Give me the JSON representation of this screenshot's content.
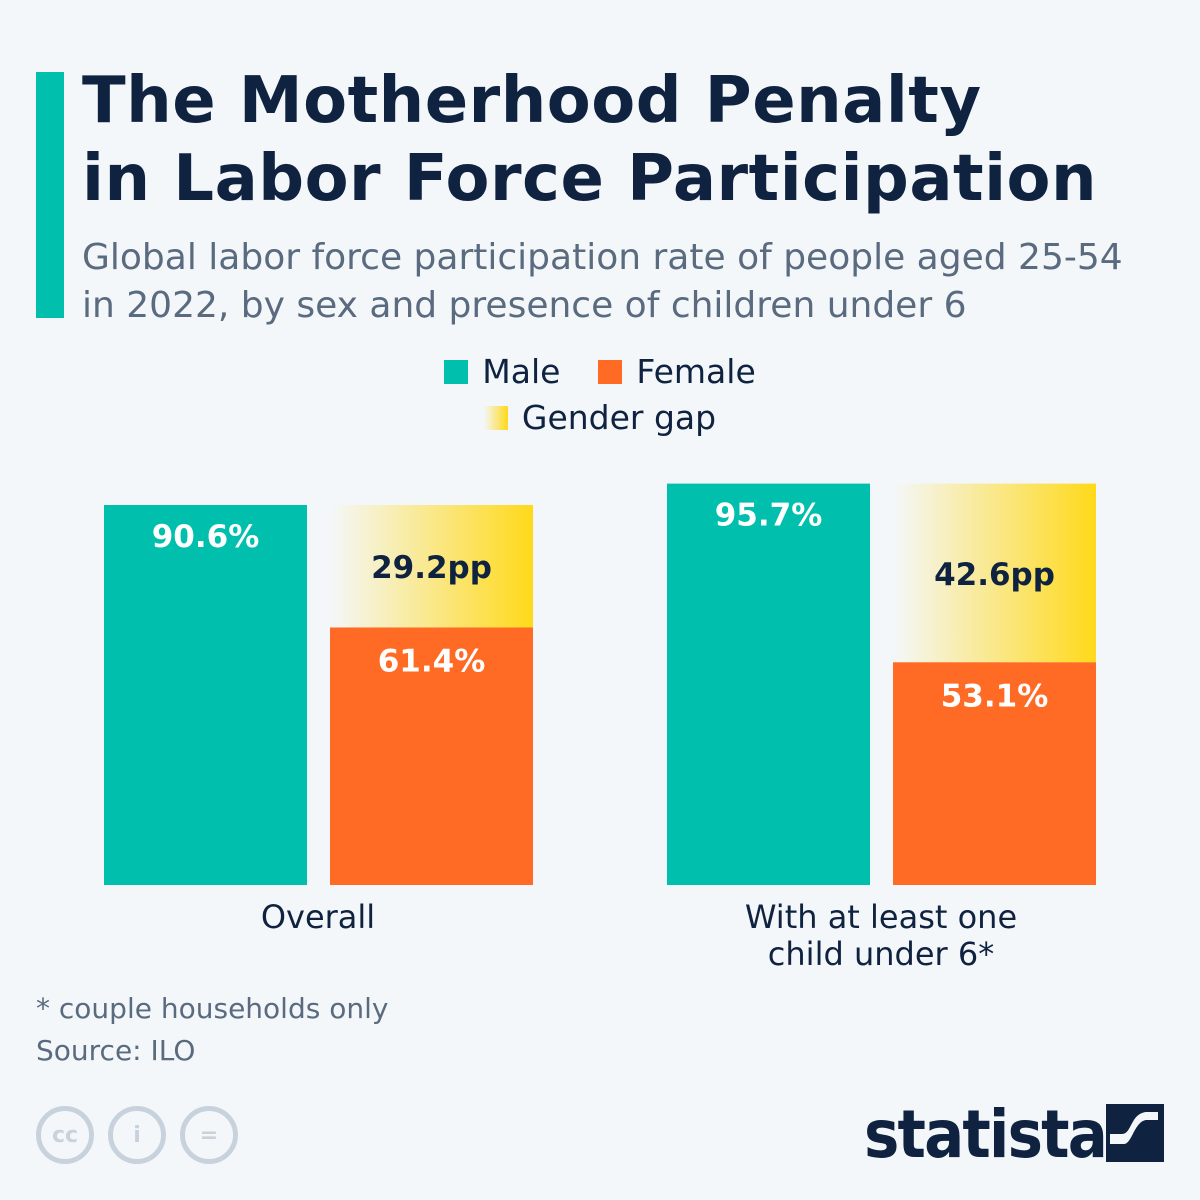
{
  "title_lines": [
    "The Motherhood Penalty",
    "in Labor Force Participation"
  ],
  "subtitle_lines": [
    "Global labor force participation rate of people aged 25-54",
    "in 2022, by sex and presence of children under 6"
  ],
  "legend": [
    {
      "label": "Male",
      "color": "#00bfad"
    },
    {
      "label": "Female",
      "color": "#ff6b24"
    },
    {
      "label": "Gender gap",
      "color": "#ffd91a"
    }
  ],
  "chart_data": {
    "type": "bar",
    "categories": [
      "Overall",
      "With at least one child under 6*"
    ],
    "category_lines": [
      [
        "Overall"
      ],
      [
        "With at least one",
        "child under 6*"
      ]
    ],
    "series": [
      {
        "name": "Male",
        "values": [
          90.6,
          95.7
        ],
        "labels": [
          "90.6%",
          "95.7%"
        ],
        "color": "#00bfad"
      },
      {
        "name": "Female",
        "values": [
          61.4,
          53.1
        ],
        "labels": [
          "61.4%",
          "53.1%"
        ],
        "color": "#ff6b24"
      }
    ],
    "gap": {
      "name": "Gender gap",
      "values": [
        29.2,
        42.6
      ],
      "labels": [
        "29.2pp",
        "42.6pp"
      ],
      "color": "#ffd91a"
    },
    "ylim": [
      0,
      100
    ],
    "grid": false,
    "legend_position": "top-center"
  },
  "footnote": "* couple households only",
  "source": "Source: ILO",
  "license_icons": [
    "cc-icon",
    "attribution-icon",
    "no-derivatives-icon"
  ],
  "logo": "statista"
}
